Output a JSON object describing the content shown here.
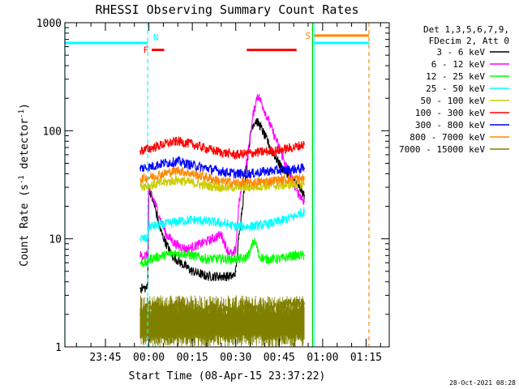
{
  "chart_data": {
    "type": "line",
    "title": "RHESSI Observing Summary Count Rates",
    "xlabel": "Start Time (08-Apr-15 23:37:22)",
    "ylabel": "Count Rate (s",
    "ylabel_sup": "-1",
    "ylabel_tail": " detector",
    "ylabel_end": ")",
    "y_scale": "log",
    "ylim": [
      1,
      1000
    ],
    "xlim_minutes": [
      -14,
      98
    ],
    "x_ticks": [
      {
        "m": 0,
        "label": "23:45"
      },
      {
        "m": 15,
        "label": "00:00"
      },
      {
        "m": 30,
        "label": "00:15"
      },
      {
        "m": 45,
        "label": "00:30"
      },
      {
        "m": 60,
        "label": "00:45"
      },
      {
        "m": 75,
        "label": "01:00"
      },
      {
        "m": 90,
        "label": "01:15"
      }
    ],
    "y_ticks": [
      {
        "v": 1,
        "label": "1"
      },
      {
        "v": 10,
        "label": "10"
      },
      {
        "v": 100,
        "label": "100"
      },
      {
        "v": 1000,
        "label": "1000"
      }
    ],
    "legend_header": [
      "Det 1,3,5,6,7,9,",
      "FDecim 2, Att 0"
    ],
    "legend_placement": "right",
    "series": [
      {
        "name": "3 - 6 keV",
        "color": "#000000",
        "x": [
          12,
          14.6,
          15,
          17,
          19,
          21,
          23,
          26,
          30,
          35,
          40,
          42,
          44,
          45,
          46,
          48,
          49.5,
          50.5,
          52,
          53.5,
          55,
          57,
          59,
          61,
          63,
          65,
          67,
          68.7
        ],
        "y": [
          3.5,
          3.5,
          30,
          20,
          12,
          9,
          7,
          6,
          5,
          4.5,
          4.5,
          4.5,
          4.5,
          5,
          10,
          30,
          70,
          110,
          125,
          110,
          90,
          70,
          55,
          45,
          40,
          35,
          30,
          25
        ]
      },
      {
        "name": "6 - 12 keV",
        "color": "#ff00ff",
        "x": [
          12,
          14.6,
          15,
          17,
          19,
          21,
          24,
          28,
          33,
          37,
          40,
          42,
          44,
          45,
          46,
          47,
          49,
          51,
          52.5,
          54,
          56,
          58,
          60,
          62,
          64,
          66,
          68.7
        ],
        "y": [
          7,
          7,
          28,
          22,
          15,
          11,
          9,
          8,
          9,
          10,
          11,
          8,
          7,
          8,
          20,
          30,
          55,
          140,
          215,
          180,
          130,
          95,
          70,
          50,
          38,
          28,
          22
        ]
      },
      {
        "name": "12 - 25 keV",
        "color": "#00ff00",
        "x": [
          12,
          14.6,
          15,
          20,
          25,
          30,
          35,
          40,
          45,
          48,
          50,
          51,
          52,
          53,
          55,
          60,
          65,
          68.7
        ],
        "y": [
          6,
          6,
          6.5,
          7,
          7.5,
          7,
          6.5,
          6.5,
          6.5,
          6.5,
          7.5,
          9.5,
          9,
          7,
          6.5,
          6.5,
          7,
          7
        ]
      },
      {
        "name": "25 - 50 keV",
        "color": "#00ffff",
        "x": [
          12,
          14.6,
          15,
          20,
          25,
          30,
          35,
          40,
          45,
          50,
          55,
          60,
          65,
          68.7
        ],
        "y": [
          10,
          10,
          13,
          13.5,
          14.5,
          15,
          14.5,
          14,
          13,
          13,
          13.5,
          14.5,
          16,
          18
        ]
      },
      {
        "name": "50 - 100 keV",
        "color": "#cccc00",
        "x": [
          12,
          15,
          20,
          25,
          30,
          35,
          40,
          45,
          50,
          55,
          60,
          65,
          68.7
        ],
        "y": [
          31,
          31,
          33,
          35,
          33,
          31,
          30,
          30,
          30,
          31,
          31,
          32,
          32
        ]
      },
      {
        "name": "100 - 300 keV",
        "color": "#ff0000",
        "x": [
          12,
          15,
          20,
          25,
          30,
          35,
          40,
          45,
          50,
          55,
          60,
          65,
          68.7
        ],
        "y": [
          65,
          68,
          75,
          80,
          75,
          68,
          63,
          60,
          62,
          64,
          66,
          70,
          75
        ]
      },
      {
        "name": "300 - 800 keV",
        "color": "#0000ff",
        "x": [
          12,
          15,
          20,
          25,
          30,
          35,
          40,
          45,
          50,
          55,
          60,
          65,
          68.7
        ],
        "y": [
          45,
          46,
          50,
          52,
          48,
          45,
          42,
          40,
          40,
          42,
          43,
          44,
          45
        ]
      },
      {
        "name": "800 - 7000 keV",
        "color": "#ff8800",
        "x": [
          12,
          15,
          20,
          25,
          30,
          35,
          40,
          45,
          50,
          55,
          60,
          65,
          68.7
        ],
        "y": [
          36,
          37,
          40,
          43,
          40,
          37,
          34,
          33,
          33,
          34,
          35,
          36,
          36
        ]
      },
      {
        "name": "7000 - 15000 keV",
        "color": "#808000",
        "x": [
          12,
          15,
          20,
          25,
          30,
          35,
          40,
          45,
          50,
          55,
          60,
          65,
          68.7
        ],
        "y": [
          2,
          2.5,
          2.2,
          2.5,
          2,
          2.2,
          2.4,
          2.1,
          2.3,
          2.2,
          2.4,
          2.6,
          2.5
        ]
      }
    ],
    "bands": [
      {
        "band": "1 - 2",
        "color": "#808000",
        "x_start": 12,
        "x_end": 68.7
      }
    ],
    "markers": [
      {
        "label": "N",
        "color": "#00ffff",
        "x_start": 14.6,
        "x_end": 14.6,
        "style": "dashed-vertical"
      },
      {
        "label": "",
        "color": "#00ffff",
        "x_start": -14,
        "x_end": 14.6,
        "level": 650,
        "style": "bar"
      },
      {
        "label": "",
        "color": "#00ffff",
        "x_start": 72,
        "x_end": 91,
        "level": 650,
        "style": "bar"
      },
      {
        "label": "F",
        "color": "#ff0000",
        "x_start": 16,
        "x_end": 20.3,
        "level": 560,
        "style": "bar"
      },
      {
        "label": "",
        "color": "#ff0000",
        "x_start": 48.8,
        "x_end": 66,
        "level": 560,
        "style": "bar"
      },
      {
        "label": "S",
        "color": "#ff8800",
        "x_start": 72,
        "x_end": 91,
        "level": 760,
        "style": "bar"
      },
      {
        "label": "",
        "color": "#00cc00",
        "x_start": 71.5,
        "x_end": 71.5,
        "style": "solid-vertical"
      },
      {
        "label": "",
        "color": "#00ffff",
        "x_start": 72,
        "x_end": 72,
        "style": "solid-vertical"
      },
      {
        "label": "",
        "color": "#00ffff",
        "x_start": -14,
        "x_end": -14,
        "style": "solid-vertical"
      },
      {
        "label": "",
        "color": "#ff8800",
        "x_start": 91,
        "x_end": 91,
        "style": "dashed-vertical"
      }
    ],
    "timestamp": "28-Oct-2021 08:28"
  }
}
